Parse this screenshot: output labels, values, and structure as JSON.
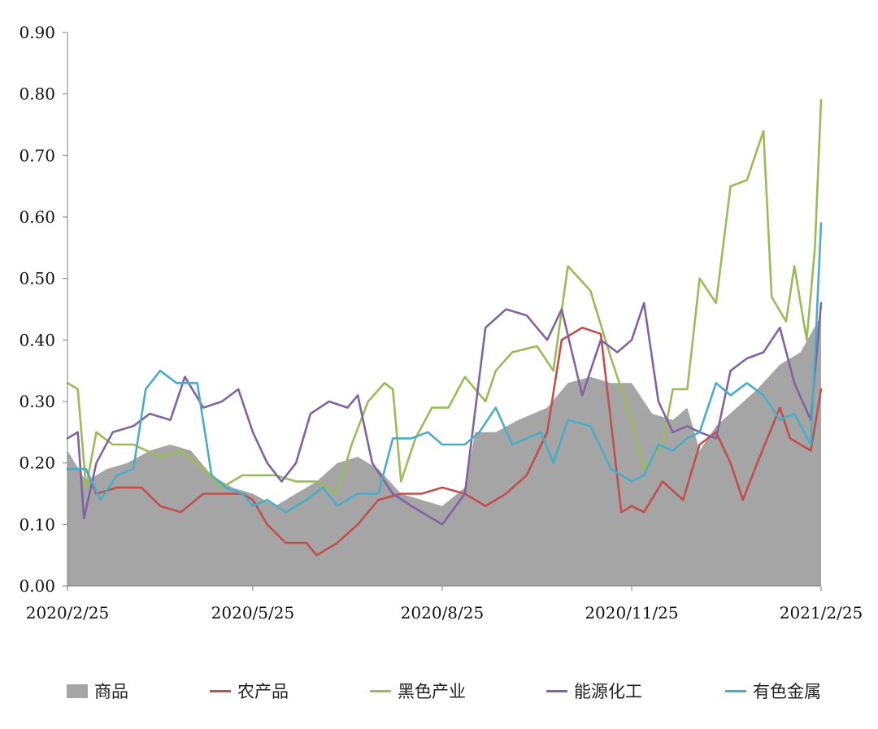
{
  "chart_data": {
    "type": "line",
    "title": "",
    "xlabel": "",
    "ylabel": "",
    "ylim": [
      0,
      0.9
    ],
    "y_ticks": [
      "0.00",
      "0.10",
      "0.20",
      "0.30",
      "0.40",
      "0.50",
      "0.60",
      "0.70",
      "0.80",
      "0.90"
    ],
    "x_range": [
      "2020-02-25",
      "2021-02-25"
    ],
    "x_ticks": [
      {
        "date": "2020-02-25",
        "label": "2020/2/25"
      },
      {
        "date": "2020-05-25",
        "label": "2020/5/25"
      },
      {
        "date": "2020-08-25",
        "label": "2020/8/25"
      },
      {
        "date": "2020-11-25",
        "label": "2020/11/25"
      },
      {
        "date": "2021-02-25",
        "label": "2021/2/25"
      }
    ],
    "grid": false,
    "legend_position": "bottom",
    "series": [
      {
        "name": "商品",
        "style": "area",
        "color": "#a5a5a5",
        "points": [
          [
            "2020-02-25",
            0.22
          ],
          [
            "2020-03-05",
            0.17
          ],
          [
            "2020-03-15",
            0.19
          ],
          [
            "2020-03-25",
            0.2
          ],
          [
            "2020-04-05",
            0.22
          ],
          [
            "2020-04-15",
            0.23
          ],
          [
            "2020-04-25",
            0.22
          ],
          [
            "2020-05-05",
            0.18
          ],
          [
            "2020-05-15",
            0.16
          ],
          [
            "2020-05-25",
            0.15
          ],
          [
            "2020-06-05",
            0.13
          ],
          [
            "2020-06-15",
            0.15
          ],
          [
            "2020-06-25",
            0.17
          ],
          [
            "2020-07-05",
            0.2
          ],
          [
            "2020-07-15",
            0.21
          ],
          [
            "2020-07-25",
            0.19
          ],
          [
            "2020-08-05",
            0.15
          ],
          [
            "2020-08-15",
            0.14
          ],
          [
            "2020-08-25",
            0.13
          ],
          [
            "2020-09-05",
            0.16
          ],
          [
            "2020-09-10",
            0.25
          ],
          [
            "2020-09-20",
            0.25
          ],
          [
            "2020-10-01",
            0.27
          ],
          [
            "2020-10-15",
            0.29
          ],
          [
            "2020-10-25",
            0.33
          ],
          [
            "2020-11-05",
            0.34
          ],
          [
            "2020-11-15",
            0.33
          ],
          [
            "2020-11-25",
            0.33
          ],
          [
            "2020-12-05",
            0.28
          ],
          [
            "2020-12-15",
            0.27
          ],
          [
            "2020-12-22",
            0.29
          ],
          [
            "2020-12-28",
            0.22
          ],
          [
            "2021-01-05",
            0.26
          ],
          [
            "2021-01-15",
            0.29
          ],
          [
            "2021-01-25",
            0.32
          ],
          [
            "2021-02-05",
            0.36
          ],
          [
            "2021-02-15",
            0.38
          ],
          [
            "2021-02-25",
            0.44
          ]
        ]
      },
      {
        "name": "农产品",
        "style": "line",
        "color": "#c0504d",
        "points": [
          [
            "2020-02-25",
            0.19
          ],
          [
            "2020-03-05",
            0.19
          ],
          [
            "2020-03-10",
            0.15
          ],
          [
            "2020-03-20",
            0.16
          ],
          [
            "2020-04-01",
            0.16
          ],
          [
            "2020-04-10",
            0.13
          ],
          [
            "2020-04-20",
            0.12
          ],
          [
            "2020-05-01",
            0.15
          ],
          [
            "2020-05-10",
            0.15
          ],
          [
            "2020-05-20",
            0.15
          ],
          [
            "2020-05-25",
            0.14
          ],
          [
            "2020-06-01",
            0.1
          ],
          [
            "2020-06-10",
            0.07
          ],
          [
            "2020-06-20",
            0.07
          ],
          [
            "2020-06-25",
            0.05
          ],
          [
            "2020-07-05",
            0.07
          ],
          [
            "2020-07-15",
            0.1
          ],
          [
            "2020-07-25",
            0.14
          ],
          [
            "2020-08-05",
            0.15
          ],
          [
            "2020-08-15",
            0.15
          ],
          [
            "2020-08-25",
            0.16
          ],
          [
            "2020-09-05",
            0.15
          ],
          [
            "2020-09-15",
            0.13
          ],
          [
            "2020-09-25",
            0.15
          ],
          [
            "2020-10-05",
            0.18
          ],
          [
            "2020-10-15",
            0.25
          ],
          [
            "2020-10-22",
            0.4
          ],
          [
            "2020-11-01",
            0.42
          ],
          [
            "2020-11-10",
            0.41
          ],
          [
            "2020-11-20",
            0.12
          ],
          [
            "2020-11-25",
            0.13
          ],
          [
            "2020-12-01",
            0.12
          ],
          [
            "2020-12-10",
            0.17
          ],
          [
            "2020-12-20",
            0.14
          ],
          [
            "2020-12-28",
            0.23
          ],
          [
            "2021-01-05",
            0.25
          ],
          [
            "2021-01-12",
            0.2
          ],
          [
            "2021-01-18",
            0.14
          ],
          [
            "2021-01-25",
            0.2
          ],
          [
            "2021-02-05",
            0.29
          ],
          [
            "2021-02-10",
            0.24
          ],
          [
            "2021-02-20",
            0.22
          ],
          [
            "2021-02-25",
            0.32
          ]
        ]
      },
      {
        "name": "黑色产业",
        "style": "line",
        "color": "#9bbb59",
        "points": [
          [
            "2020-02-25",
            0.33
          ],
          [
            "2020-03-01",
            0.32
          ],
          [
            "2020-03-05",
            0.16
          ],
          [
            "2020-03-10",
            0.25
          ],
          [
            "2020-03-18",
            0.23
          ],
          [
            "2020-03-28",
            0.23
          ],
          [
            "2020-04-10",
            0.21
          ],
          [
            "2020-04-20",
            0.22
          ],
          [
            "2020-05-01",
            0.19
          ],
          [
            "2020-05-10",
            0.16
          ],
          [
            "2020-05-20",
            0.18
          ],
          [
            "2020-05-25",
            0.18
          ],
          [
            "2020-06-05",
            0.18
          ],
          [
            "2020-06-15",
            0.17
          ],
          [
            "2020-06-25",
            0.17
          ],
          [
            "2020-07-05",
            0.15
          ],
          [
            "2020-07-12",
            0.23
          ],
          [
            "2020-07-20",
            0.3
          ],
          [
            "2020-07-28",
            0.33
          ],
          [
            "2020-08-01",
            0.32
          ],
          [
            "2020-08-05",
            0.17
          ],
          [
            "2020-08-12",
            0.24
          ],
          [
            "2020-08-20",
            0.29
          ],
          [
            "2020-08-28",
            0.29
          ],
          [
            "2020-09-05",
            0.34
          ],
          [
            "2020-09-15",
            0.3
          ],
          [
            "2020-09-20",
            0.35
          ],
          [
            "2020-09-28",
            0.38
          ],
          [
            "2020-10-10",
            0.39
          ],
          [
            "2020-10-18",
            0.35
          ],
          [
            "2020-10-25",
            0.52
          ],
          [
            "2020-11-05",
            0.48
          ],
          [
            "2020-11-15",
            0.37
          ],
          [
            "2020-11-25",
            0.27
          ],
          [
            "2020-12-01",
            0.19
          ],
          [
            "2020-12-10",
            0.23
          ],
          [
            "2020-12-15",
            0.32
          ],
          [
            "2020-12-22",
            0.32
          ],
          [
            "2020-12-28",
            0.5
          ],
          [
            "2021-01-05",
            0.46
          ],
          [
            "2021-01-12",
            0.65
          ],
          [
            "2021-01-20",
            0.66
          ],
          [
            "2021-01-28",
            0.74
          ],
          [
            "2021-02-01",
            0.47
          ],
          [
            "2021-02-08",
            0.43
          ],
          [
            "2021-02-12",
            0.52
          ],
          [
            "2021-02-18",
            0.4
          ],
          [
            "2021-02-22",
            0.55
          ],
          [
            "2021-02-25",
            0.79
          ]
        ]
      },
      {
        "name": "能源化工",
        "style": "line",
        "color": "#8064a2",
        "points": [
          [
            "2020-02-25",
            0.24
          ],
          [
            "2020-03-01",
            0.25
          ],
          [
            "2020-03-04",
            0.11
          ],
          [
            "2020-03-10",
            0.2
          ],
          [
            "2020-03-18",
            0.25
          ],
          [
            "2020-03-28",
            0.26
          ],
          [
            "2020-04-05",
            0.28
          ],
          [
            "2020-04-15",
            0.27
          ],
          [
            "2020-04-22",
            0.34
          ],
          [
            "2020-05-01",
            0.29
          ],
          [
            "2020-05-10",
            0.3
          ],
          [
            "2020-05-18",
            0.32
          ],
          [
            "2020-05-25",
            0.25
          ],
          [
            "2020-06-01",
            0.2
          ],
          [
            "2020-06-08",
            0.17
          ],
          [
            "2020-06-15",
            0.2
          ],
          [
            "2020-06-22",
            0.28
          ],
          [
            "2020-07-01",
            0.3
          ],
          [
            "2020-07-10",
            0.29
          ],
          [
            "2020-07-15",
            0.31
          ],
          [
            "2020-07-22",
            0.2
          ],
          [
            "2020-08-01",
            0.15
          ],
          [
            "2020-08-10",
            0.13
          ],
          [
            "2020-08-20",
            0.11
          ],
          [
            "2020-08-25",
            0.1
          ],
          [
            "2020-09-05",
            0.15
          ],
          [
            "2020-09-15",
            0.42
          ],
          [
            "2020-09-25",
            0.45
          ],
          [
            "2020-10-05",
            0.44
          ],
          [
            "2020-10-15",
            0.4
          ],
          [
            "2020-10-22",
            0.45
          ],
          [
            "2020-11-01",
            0.31
          ],
          [
            "2020-11-10",
            0.4
          ],
          [
            "2020-11-18",
            0.38
          ],
          [
            "2020-11-25",
            0.4
          ],
          [
            "2020-12-01",
            0.46
          ],
          [
            "2020-12-08",
            0.3
          ],
          [
            "2020-12-15",
            0.25
          ],
          [
            "2020-12-22",
            0.26
          ],
          [
            "2020-12-28",
            0.25
          ],
          [
            "2021-01-05",
            0.24
          ],
          [
            "2021-01-12",
            0.35
          ],
          [
            "2021-01-20",
            0.37
          ],
          [
            "2021-01-28",
            0.38
          ],
          [
            "2021-02-05",
            0.42
          ],
          [
            "2021-02-12",
            0.33
          ],
          [
            "2021-02-20",
            0.27
          ],
          [
            "2021-02-25",
            0.46
          ]
        ]
      },
      {
        "name": "有色金属",
        "style": "line",
        "color": "#4bacc6",
        "points": [
          [
            "2020-02-25",
            0.19
          ],
          [
            "2020-03-05",
            0.19
          ],
          [
            "2020-03-12",
            0.14
          ],
          [
            "2020-03-20",
            0.18
          ],
          [
            "2020-03-28",
            0.19
          ],
          [
            "2020-04-03",
            0.32
          ],
          [
            "2020-04-10",
            0.35
          ],
          [
            "2020-04-18",
            0.33
          ],
          [
            "2020-04-28",
            0.33
          ],
          [
            "2020-05-05",
            0.18
          ],
          [
            "2020-05-12",
            0.16
          ],
          [
            "2020-05-20",
            0.15
          ],
          [
            "2020-05-25",
            0.13
          ],
          [
            "2020-06-01",
            0.14
          ],
          [
            "2020-06-10",
            0.12
          ],
          [
            "2020-06-20",
            0.14
          ],
          [
            "2020-06-28",
            0.16
          ],
          [
            "2020-07-05",
            0.13
          ],
          [
            "2020-07-15",
            0.15
          ],
          [
            "2020-07-25",
            0.15
          ],
          [
            "2020-08-01",
            0.24
          ],
          [
            "2020-08-10",
            0.24
          ],
          [
            "2020-08-18",
            0.25
          ],
          [
            "2020-08-25",
            0.23
          ],
          [
            "2020-09-05",
            0.23
          ],
          [
            "2020-09-12",
            0.25
          ],
          [
            "2020-09-20",
            0.29
          ],
          [
            "2020-09-28",
            0.23
          ],
          [
            "2020-10-05",
            0.24
          ],
          [
            "2020-10-12",
            0.25
          ],
          [
            "2020-10-18",
            0.2
          ],
          [
            "2020-10-25",
            0.27
          ],
          [
            "2020-11-05",
            0.26
          ],
          [
            "2020-11-15",
            0.19
          ],
          [
            "2020-11-25",
            0.17
          ],
          [
            "2020-12-01",
            0.18
          ],
          [
            "2020-12-08",
            0.23
          ],
          [
            "2020-12-15",
            0.22
          ],
          [
            "2020-12-22",
            0.24
          ],
          [
            "2020-12-28",
            0.25
          ],
          [
            "2021-01-05",
            0.33
          ],
          [
            "2021-01-12",
            0.31
          ],
          [
            "2021-01-20",
            0.33
          ],
          [
            "2021-01-28",
            0.31
          ],
          [
            "2021-02-05",
            0.27
          ],
          [
            "2021-02-12",
            0.28
          ],
          [
            "2021-02-20",
            0.23
          ],
          [
            "2021-02-25",
            0.59
          ]
        ]
      }
    ]
  }
}
